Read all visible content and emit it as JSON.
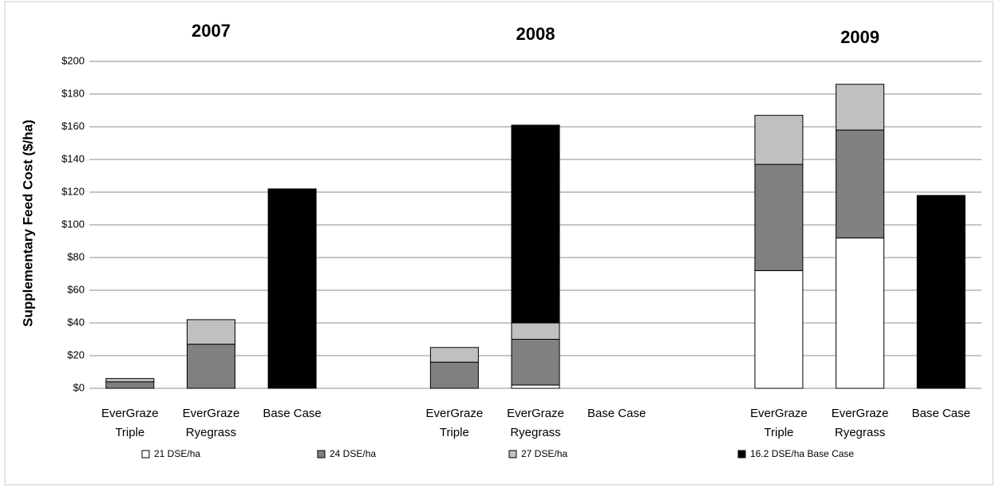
{
  "chart_data": {
    "type": "stacked-bar",
    "y_label": "Supplementary Feed Cost ($/ha)",
    "group_labels": [
      "2007",
      "2008",
      "2009"
    ],
    "categories": [
      [
        "EverGraze",
        "Triple"
      ],
      [
        "EverGraze",
        "Ryegrass"
      ],
      [
        "Base Case"
      ],
      null,
      [
        "EverGraze",
        "Triple"
      ],
      [
        "EverGraze",
        "Ryegrass"
      ],
      [
        "Base Case"
      ],
      null,
      [
        "EverGraze",
        "Triple"
      ],
      [
        "EverGraze",
        "Ryegrass"
      ],
      [
        "Base Case"
      ]
    ],
    "series": [
      {
        "name": "21 DSE/ha",
        "color": "#ffffff",
        "values": [
          null,
          null,
          null,
          null,
          null,
          2,
          null,
          null,
          72,
          92,
          null
        ]
      },
      {
        "name": "24 DSE/ha",
        "color": "#808080",
        "values": [
          4,
          27,
          null,
          null,
          16,
          28,
          null,
          null,
          65,
          66,
          null
        ]
      },
      {
        "name": "27 DSE/ha",
        "color": "#c0c0c0",
        "values": [
          2,
          15,
          null,
          null,
          9,
          10,
          null,
          null,
          30,
          28,
          null
        ]
      },
      {
        "name": "16.2 DSE/ha Base Case",
        "color": "#000000",
        "values": [
          null,
          null,
          122,
          null,
          null,
          121,
          null,
          null,
          null,
          null,
          118
        ]
      }
    ],
    "ylim": [
      0,
      200
    ],
    "yticks": [
      {
        "value": 0,
        "label": "$0"
      },
      {
        "value": 20,
        "label": "$20"
      },
      {
        "value": 40,
        "label": "$40"
      },
      {
        "value": 60,
        "label": "$60"
      },
      {
        "value": 80,
        "label": "$80"
      },
      {
        "value": 100,
        "label": "$100"
      },
      {
        "value": 120,
        "label": "$120"
      },
      {
        "value": 140,
        "label": "$140"
      },
      {
        "value": 160,
        "label": "$160"
      },
      {
        "value": 180,
        "label": "$180"
      },
      {
        "value": 200,
        "label": "$200"
      }
    ],
    "grid": true
  }
}
